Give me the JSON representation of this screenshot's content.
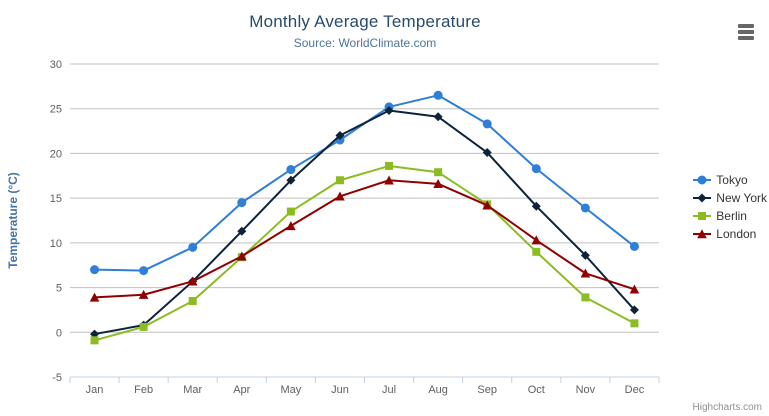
{
  "chart_data": {
    "type": "line",
    "title": "Monthly Average Temperature",
    "subtitle": "Source: WorldClimate.com",
    "categories": [
      "Jan",
      "Feb",
      "Mar",
      "Apr",
      "May",
      "Jun",
      "Jul",
      "Aug",
      "Sep",
      "Oct",
      "Nov",
      "Dec"
    ],
    "xlabel": "",
    "ylabel": "Temperature (°C)",
    "ylim": [
      -5,
      30
    ],
    "ytick_interval": 5,
    "grid": true,
    "legend_position": "right",
    "series": [
      {
        "name": "Tokyo",
        "color": "#2f7ed8",
        "marker": "circle",
        "values": [
          7.0,
          6.9,
          9.5,
          14.5,
          18.2,
          21.5,
          25.2,
          26.5,
          23.3,
          18.3,
          13.9,
          9.6
        ]
      },
      {
        "name": "New York",
        "color": "#0d233a",
        "marker": "diamond",
        "values": [
          -0.2,
          0.8,
          5.7,
          11.3,
          17.0,
          22.0,
          24.8,
          24.1,
          20.1,
          14.1,
          8.6,
          2.5
        ]
      },
      {
        "name": "Berlin",
        "color": "#8bbc21",
        "marker": "square",
        "values": [
          -0.9,
          0.6,
          3.5,
          8.4,
          13.5,
          17.0,
          18.6,
          17.9,
          14.3,
          9.0,
          3.9,
          1.0
        ]
      },
      {
        "name": "London",
        "color": "#910000",
        "marker": "triangle",
        "values": [
          3.9,
          4.2,
          5.7,
          8.5,
          11.9,
          15.2,
          17.0,
          16.6,
          14.2,
          10.3,
          6.6,
          4.8
        ]
      }
    ]
  },
  "colors": {
    "title": "#274b6d",
    "subtitle": "#4d759e",
    "axis_title": "#4572a7",
    "tick_label": "#606060",
    "grid_line": "#c0c0c0",
    "axis_line": "#c0d0e0",
    "legend_text": "#333333",
    "credit_text": "#909090",
    "menu_icon": "#666666"
  },
  "export_menu": {
    "icon": "hamburger-menu-icon",
    "tooltip": "Chart context menu"
  },
  "credits": {
    "label": "Highcharts.com"
  }
}
